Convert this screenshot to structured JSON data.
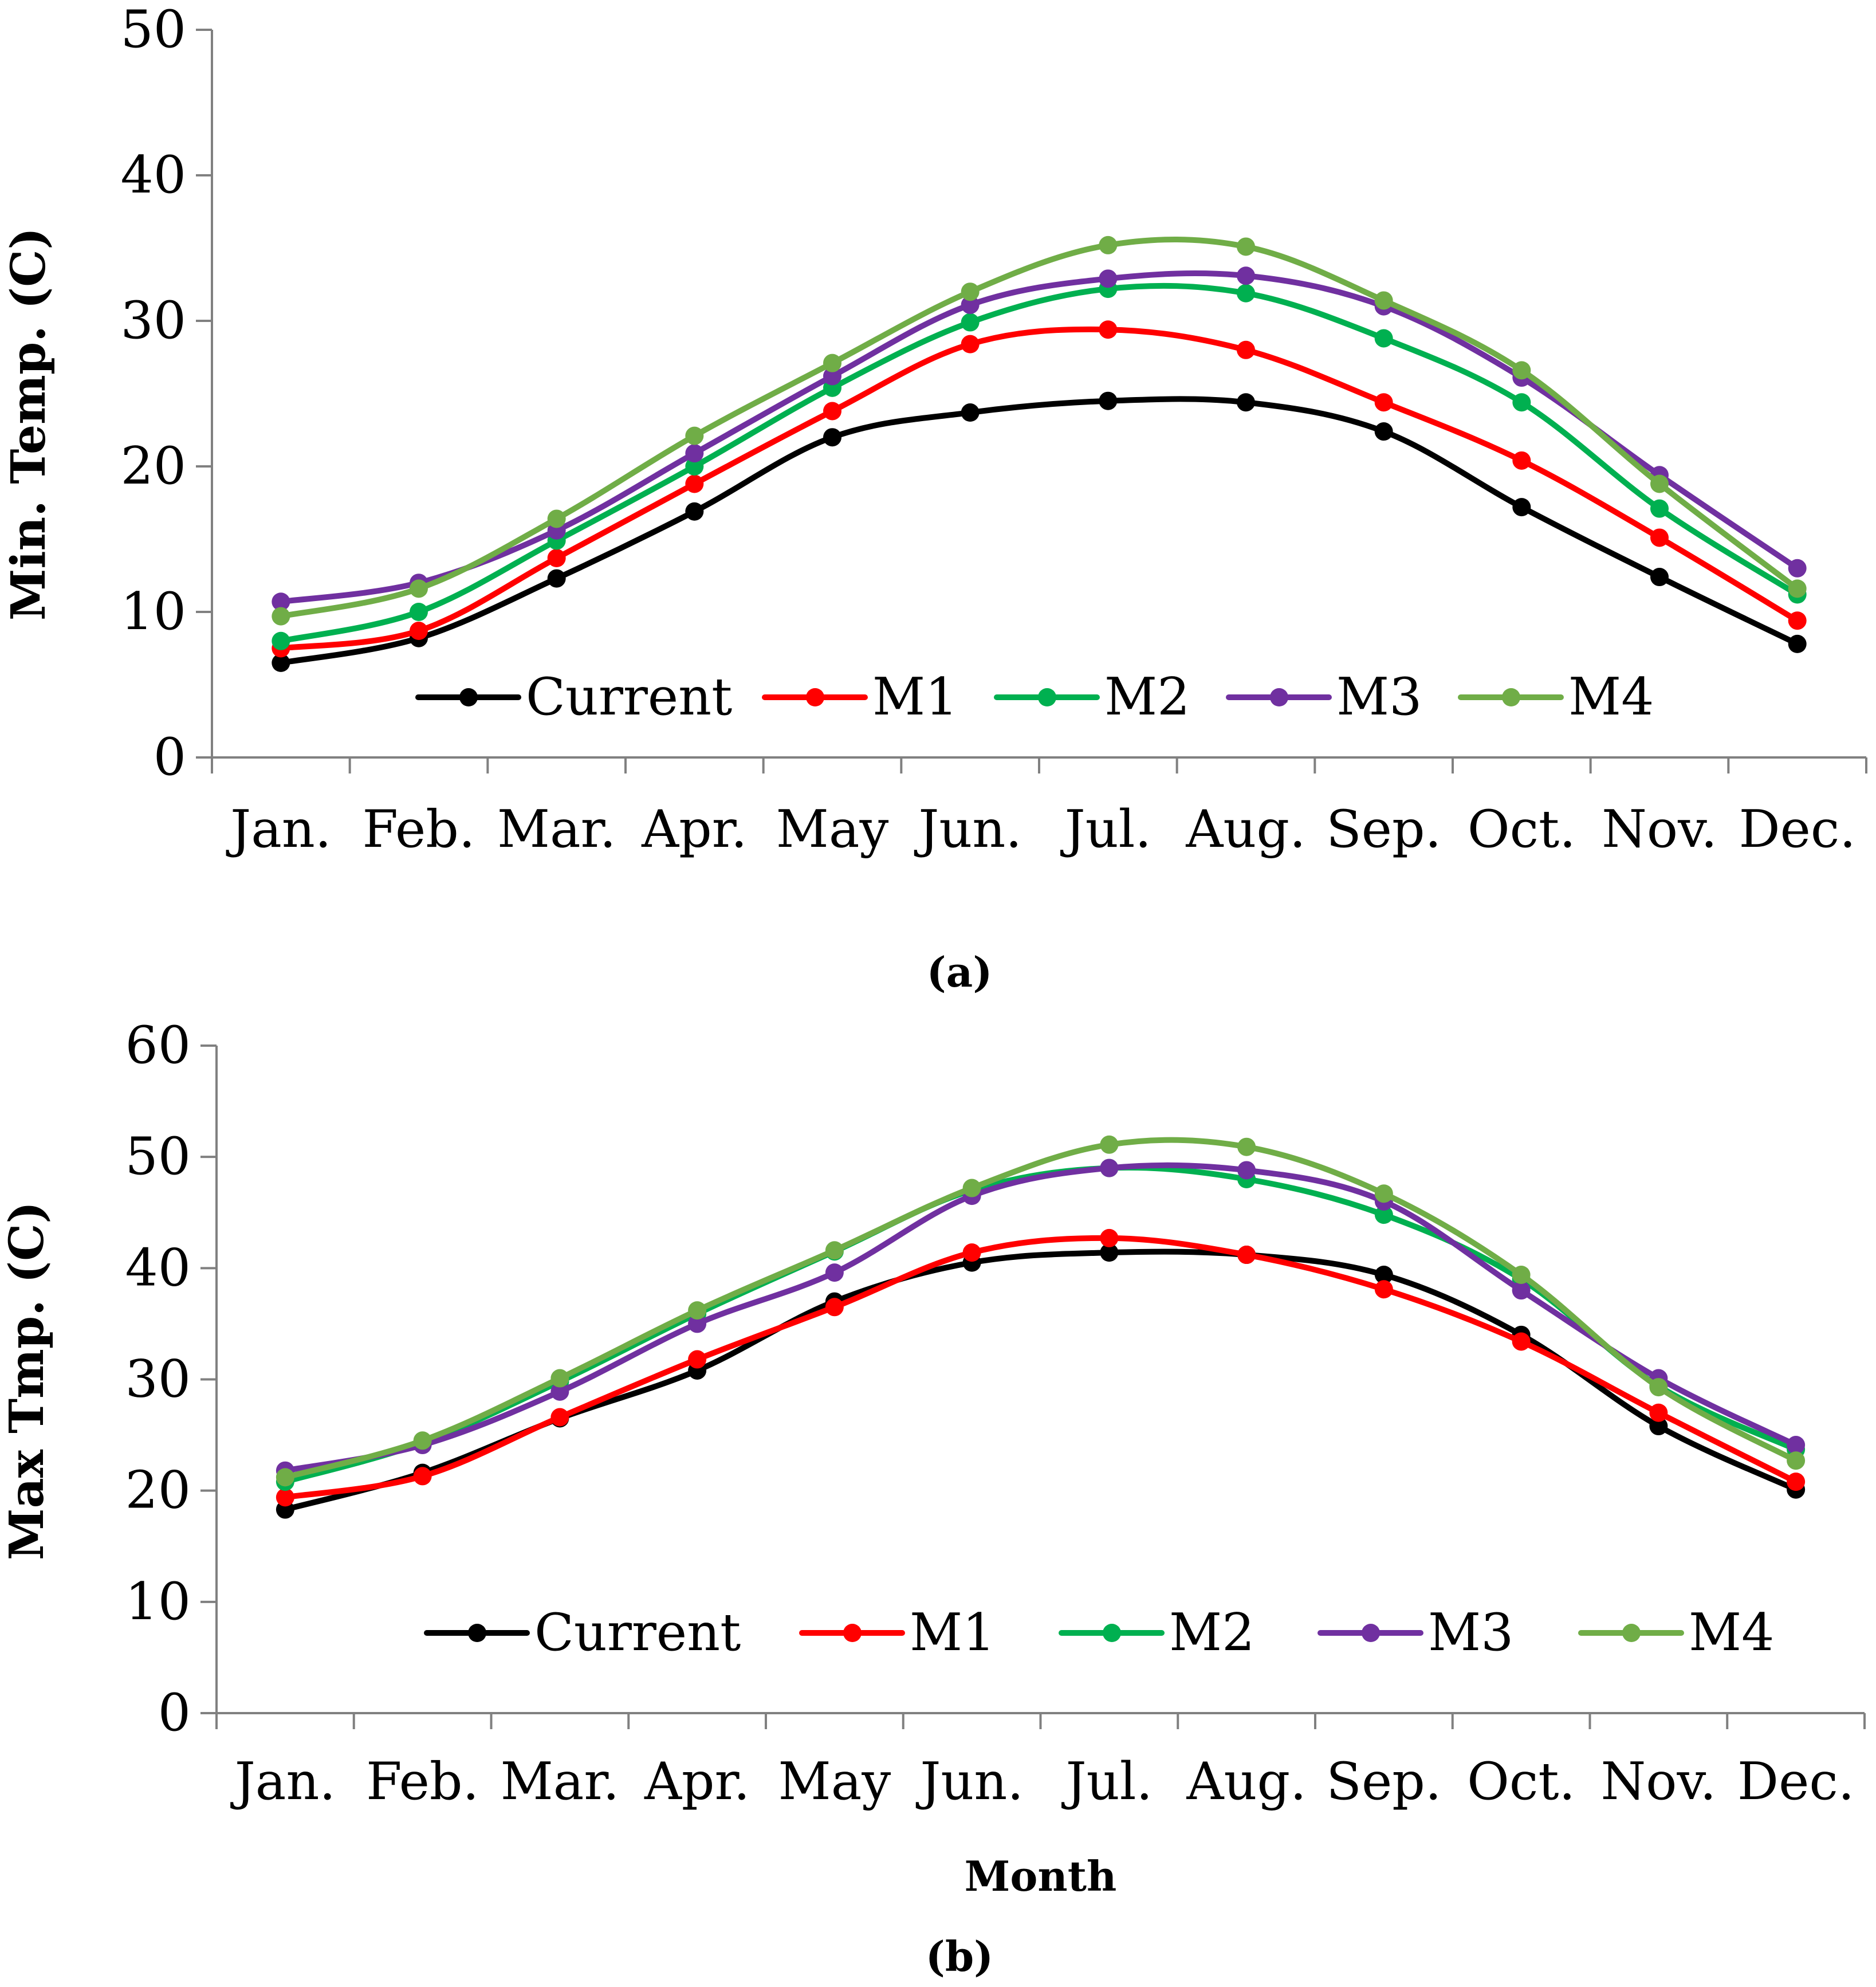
{
  "colors": {
    "Current": "#000000",
    "M1": "#ff0000",
    "M2": "#00b050",
    "M3": "#7030a0",
    "M4": "#70ad47"
  },
  "chart_data": [
    {
      "type": "line",
      "caption": "(a)",
      "ylabel": "Min. Temp.  (C)",
      "xlabel": "",
      "ylim": [
        0,
        50
      ],
      "yticks": [
        0,
        10,
        20,
        30,
        40,
        50
      ],
      "categories": [
        "Jan.",
        "Feb.",
        "Mar.",
        "Apr.",
        "May",
        "Jun.",
        "Jul.",
        "Aug.",
        "Sep.",
        "Oct.",
        "Nov.",
        "Dec."
      ],
      "legend": [
        "Current",
        "M1",
        "M2",
        "M3",
        "M4"
      ],
      "series": [
        {
          "name": "Current",
          "values": [
            6.5,
            8.2,
            12.3,
            16.9,
            22.0,
            23.7,
            24.5,
            24.4,
            22.4,
            17.2,
            12.4,
            7.8
          ]
        },
        {
          "name": "M1",
          "values": [
            7.5,
            8.7,
            13.7,
            18.8,
            23.8,
            28.4,
            29.4,
            28.0,
            24.4,
            20.4,
            15.1,
            9.4
          ]
        },
        {
          "name": "M2",
          "values": [
            8.0,
            10.0,
            14.9,
            20.0,
            25.4,
            29.9,
            32.2,
            31.9,
            28.8,
            24.4,
            17.1,
            11.2
          ]
        },
        {
          "name": "M3",
          "values": [
            10.7,
            12.0,
            15.6,
            20.9,
            26.2,
            31.1,
            32.9,
            33.1,
            31.0,
            26.1,
            19.4,
            13.0
          ]
        },
        {
          "name": "M4",
          "values": [
            9.7,
            11.6,
            16.4,
            22.1,
            27.1,
            32.0,
            35.2,
            35.1,
            31.4,
            26.6,
            18.8,
            11.6
          ]
        }
      ]
    },
    {
      "type": "line",
      "caption": "(b)",
      "ylabel": "Max Tmp.  (C)",
      "xlabel": "Month",
      "ylim": [
        0,
        60
      ],
      "yticks": [
        0,
        10,
        20,
        30,
        40,
        50,
        60
      ],
      "categories": [
        "Jan.",
        "Feb.",
        "Mar.",
        "Apr.",
        "May",
        "Jun.",
        "Jul.",
        "Aug.",
        "Sep.",
        "Oct.",
        "Nov.",
        "Dec."
      ],
      "legend": [
        "Current",
        "M1",
        "M2",
        "M3",
        "M4"
      ],
      "series": [
        {
          "name": "Current",
          "values": [
            18.3,
            21.6,
            26.5,
            30.8,
            37.0,
            40.5,
            41.4,
            41.2,
            39.4,
            34.0,
            25.8,
            20.1
          ]
        },
        {
          "name": "M1",
          "values": [
            19.4,
            21.3,
            26.6,
            31.8,
            36.5,
            41.4,
            42.7,
            41.2,
            38.1,
            33.4,
            27.0,
            20.8
          ]
        },
        {
          "name": "M2",
          "values": [
            20.8,
            24.3,
            29.8,
            35.9,
            41.5,
            47.0,
            49.0,
            48.0,
            44.8,
            39.0,
            29.4,
            23.7
          ]
        },
        {
          "name": "M3",
          "values": [
            21.8,
            24.1,
            28.9,
            35.0,
            39.6,
            46.5,
            49.0,
            48.8,
            46.0,
            38.0,
            30.1,
            24.1
          ]
        },
        {
          "name": "M4",
          "values": [
            21.2,
            24.5,
            30.1,
            36.2,
            41.6,
            47.2,
            51.1,
            50.9,
            46.7,
            39.4,
            29.3,
            22.7
          ]
        }
      ]
    }
  ]
}
